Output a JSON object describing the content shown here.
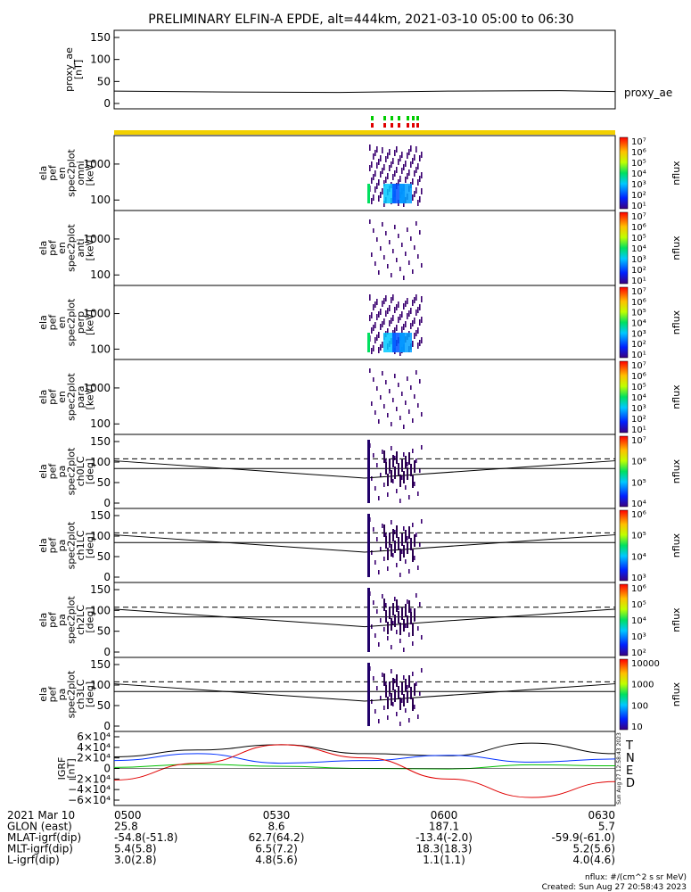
{
  "title": "PRELIMINARY ELFIN-A EPDE, alt=444km, 2021-03-10 05:00 to 06:30",
  "colors": {
    "axis": "#000000",
    "ae_line": "#000000",
    "status_bar": "#f2d000",
    "tick_red": "#e00000",
    "tick_green": "#00cc00",
    "T": "#000000",
    "N": "#0030ff",
    "E": "#00c000",
    "D": "#e00000"
  },
  "panels": [
    {
      "type": "line",
      "ylabel": [
        "proxy_ae",
        "[nT]"
      ],
      "right_label": "proxy_ae",
      "yticks": [
        "150",
        "100",
        "50",
        "0"
      ],
      "series": {
        "x": [
          "05:00",
          "05:20",
          "05:40",
          "06:00",
          "06:20",
          "06:30"
        ],
        "y": [
          24,
          22,
          21,
          24,
          25,
          23
        ]
      }
    },
    {
      "type": "spectrogram",
      "ylabel": [
        "ela",
        "pef",
        "en",
        "spec2plot",
        "omni",
        "[keV]"
      ],
      "yticks": [
        "1000",
        "100"
      ],
      "cbar_ticks": [
        "10⁷",
        "10⁶",
        "10⁵",
        "10⁴",
        "10³",
        "10²",
        "10¹"
      ],
      "cbar_label": "nflux"
    },
    {
      "type": "spectrogram",
      "ylabel": [
        "ela",
        "pef",
        "en",
        "spec2plot",
        "anti",
        "[keV]"
      ],
      "yticks": [
        "1000",
        "100"
      ],
      "cbar_ticks": [
        "10⁷",
        "10⁶",
        "10⁵",
        "10⁴",
        "10³",
        "10²",
        "10¹"
      ],
      "cbar_label": "nflux"
    },
    {
      "type": "spectrogram",
      "ylabel": [
        "ela",
        "pef",
        "en",
        "spec2plot",
        "perp",
        "[keV]"
      ],
      "yticks": [
        "1000",
        "100"
      ],
      "cbar_ticks": [
        "10⁷",
        "10⁶",
        "10⁵",
        "10⁴",
        "10³",
        "10²",
        "10¹"
      ],
      "cbar_label": "nflux"
    },
    {
      "type": "spectrogram",
      "ylabel": [
        "ela",
        "pef",
        "en",
        "spec2plot",
        "para",
        "[keV]"
      ],
      "yticks": [
        "1000",
        "100"
      ],
      "cbar_ticks": [
        "10⁷",
        "10⁶",
        "10⁵",
        "10⁴",
        "10³",
        "10²",
        "10¹"
      ],
      "cbar_label": "nflux"
    },
    {
      "type": "pitch",
      "ylabel": [
        "ela",
        "pef",
        "pa",
        "spec2plot",
        "ch0LC",
        "[deg]"
      ],
      "yticks": [
        "150",
        "100",
        "50",
        "0"
      ],
      "cbar_ticks": [
        "10⁷",
        "10⁶",
        "10⁵",
        "10⁴"
      ],
      "cbar_label": "nflux"
    },
    {
      "type": "pitch",
      "ylabel": [
        "ela",
        "pef",
        "pa",
        "spec2plot",
        "ch1LC",
        "[deg]"
      ],
      "yticks": [
        "150",
        "100",
        "50",
        "0"
      ],
      "cbar_ticks": [
        "10⁶",
        "10⁵",
        "10⁴",
        "10³"
      ],
      "cbar_label": "nflux"
    },
    {
      "type": "pitch",
      "ylabel": [
        "ela",
        "pef",
        "pa",
        "spec2plot",
        "ch2LC",
        "[deg]"
      ],
      "yticks": [
        "150",
        "100",
        "50",
        "0"
      ],
      "cbar_ticks": [
        "10⁶",
        "10⁵",
        "10⁴",
        "10³",
        "10²"
      ],
      "cbar_label": "nflux"
    },
    {
      "type": "pitch",
      "ylabel": [
        "ela",
        "pef",
        "pa",
        "spec2plot",
        "ch3LC",
        "[deg]"
      ],
      "yticks": [
        "150",
        "100",
        "50",
        "0"
      ],
      "cbar_ticks": [
        "10000",
        "1000",
        "100",
        "10"
      ],
      "cbar_label": "nflux"
    },
    {
      "type": "igrf",
      "ylabel": [
        "IGRF",
        "[nT]"
      ],
      "yticks": [
        "6×10⁴",
        "4×10⁴",
        "2×10⁴",
        "0",
        "−2×10⁴",
        "−4×10⁴",
        "−6×10⁴"
      ],
      "legend": [
        "T",
        "N",
        "E",
        "D"
      ]
    }
  ],
  "chart_data": {
    "type": "line",
    "title": "PRELIMINARY ELFIN-A EPDE, alt=444km, 2021-03-10 05:00 to 06:30",
    "x_range": [
      "05:00",
      "06:30"
    ],
    "proxy_ae": {
      "ylabel": "proxy_ae [nT]",
      "ylim": [
        0,
        160
      ],
      "x": [
        "05:00",
        "05:20",
        "05:40",
        "06:00",
        "06:20",
        "06:30"
      ],
      "y": [
        24,
        22,
        21,
        24,
        25,
        23
      ]
    },
    "pitch_angle_lines": {
      "ylim": [
        0,
        180
      ],
      "x": [
        "05:00",
        "05:45",
        "06:30"
      ],
      "solid_lower": [
        110,
        65,
        110
      ],
      "solid_upper": [
        90,
        90,
        90
      ],
      "dashed": [
        115,
        115,
        115
      ]
    },
    "igrf": {
      "ylabel": "IGRF [nT]",
      "ylim": [
        -65000,
        65000
      ],
      "series": [
        {
          "name": "T",
          "x": [
            "05:00",
            "05:15",
            "05:30",
            "05:45",
            "06:00",
            "06:15",
            "06:30"
          ],
          "y": [
            22000,
            35000,
            45000,
            28000,
            24000,
            48000,
            28000
          ]
        },
        {
          "name": "N",
          "x": [
            "05:00",
            "05:15",
            "05:30",
            "05:45",
            "06:00",
            "06:15",
            "06:30"
          ],
          "y": [
            15000,
            28000,
            10000,
            15000,
            25000,
            12000,
            18000
          ]
        },
        {
          "name": "E",
          "x": [
            "05:00",
            "05:15",
            "05:30",
            "05:45",
            "06:00",
            "06:15",
            "06:30"
          ],
          "y": [
            2000,
            8000,
            4000,
            0,
            -1000,
            7000,
            5000
          ]
        },
        {
          "name": "D",
          "x": [
            "05:00",
            "05:15",
            "05:30",
            "05:45",
            "06:00",
            "06:15",
            "06:30"
          ],
          "y": [
            -22000,
            10000,
            45000,
            20000,
            -20000,
            -55000,
            -25000
          ]
        }
      ]
    }
  },
  "footer": {
    "rows": [
      {
        "label": "2021 Mar 10",
        "values": [
          "0500",
          "0530",
          "0600",
          "0630"
        ]
      },
      {
        "label": "GLON (east)",
        "values": [
          "25.8",
          "8.6",
          "187.1",
          "5.7"
        ]
      },
      {
        "label": "MLAT-igrf(dip)",
        "values": [
          "-54.8(-51.8)",
          "62.7(64.2)",
          "-13.4(-2.0)",
          "-59.9(-61.0)"
        ]
      },
      {
        "label": "MLT-igrf(dip)",
        "values": [
          "5.4(5.8)",
          "6.5(7.2)",
          "18.3(18.3)",
          "5.2(5.6)"
        ]
      },
      {
        "label": "L-igrf(dip)",
        "values": [
          "3.0(2.8)",
          "4.8(5.6)",
          "1.1(1.1)",
          "4.0(4.6)"
        ]
      }
    ],
    "units": "nflux: #/(cm^2 s sr MeV)",
    "created": "Created: Sun Aug 27 20:58:43 2023",
    "side_stamp": "Sun Aug 27 12:58:43 2023"
  }
}
